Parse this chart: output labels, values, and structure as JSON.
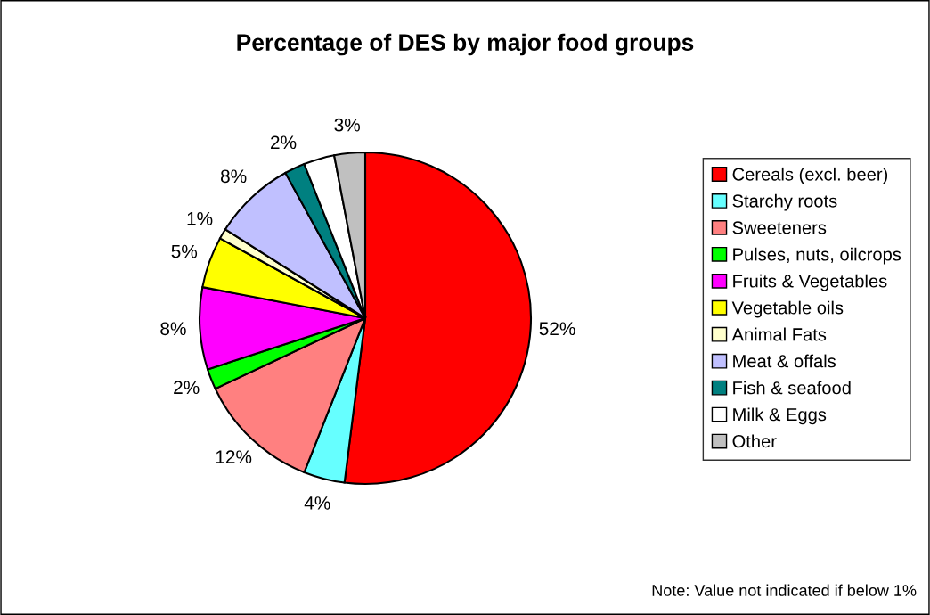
{
  "chart_data": {
    "type": "pie",
    "title": "Percentage of DES by major food groups",
    "categories": [
      "Cereals (excl. beer)",
      "Starchy roots",
      "Sweeteners",
      "Pulses, nuts, oilcrops",
      "Fruits & Vegetables",
      "Vegetable oils",
      "Animal Fats",
      "Meat & offals",
      "Fish & seafood",
      "Milk & Eggs",
      "Other"
    ],
    "values": [
      52,
      4,
      12,
      2,
      8,
      5,
      1,
      8,
      2,
      3,
      3
    ],
    "colors": [
      "#ff0000",
      "#66ffff",
      "#ff8080",
      "#00ff00",
      "#ff00ff",
      "#ffff00",
      "#ffffcc",
      "#c0c0ff",
      "#008080",
      "#ffffff",
      "#c0c0c0"
    ],
    "value_labels": [
      "52%",
      "4%",
      "12%",
      "2%",
      "8%",
      "5%",
      "1%",
      "8%",
      "2%",
      null,
      "3%"
    ],
    "legend": "right",
    "annotations": [
      "Note: Value not indicated if below 1%"
    ]
  }
}
